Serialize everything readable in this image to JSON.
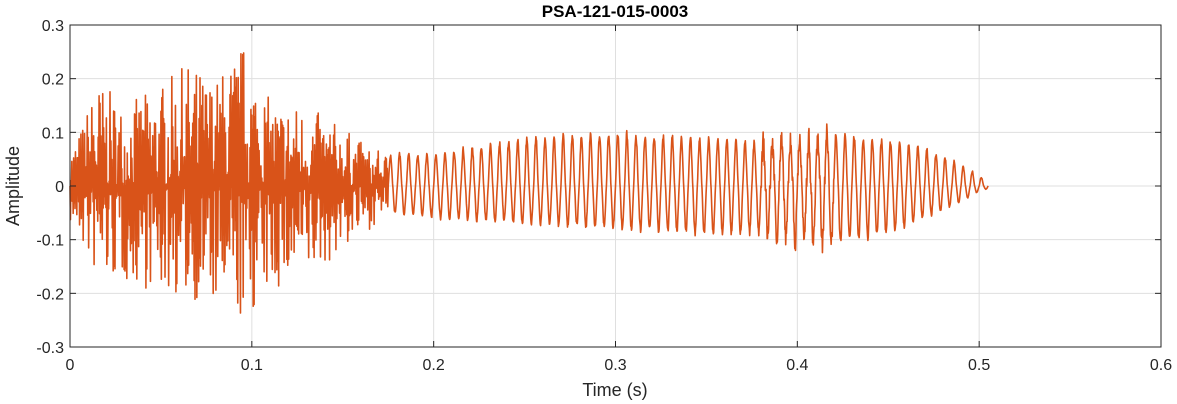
{
  "chart_data": {
    "type": "line",
    "title": "PSA-121-015-0003",
    "xlabel": "Time (s)",
    "ylabel": "Amplitude",
    "xlim": [
      0,
      0.6
    ],
    "ylim": [
      -0.3,
      0.3
    ],
    "xticks": [
      0,
      0.1,
      0.2,
      0.3,
      0.4,
      0.5,
      0.6
    ],
    "xtick_labels": [
      "0",
      "0.1",
      "0.2",
      "0.3",
      "0.4",
      "0.5",
      "0.6"
    ],
    "yticks": [
      -0.3,
      -0.2,
      -0.1,
      0,
      0.1,
      0.2,
      0.3
    ],
    "ytick_labels": [
      "-0.3",
      "-0.2",
      "-0.1",
      "0",
      "0.1",
      "0.2",
      "0.3"
    ],
    "grid": true,
    "legend": "none",
    "series_color": "#d95319",
    "envelope": {
      "t": [
        0,
        0.005,
        0.015,
        0.03,
        0.05,
        0.065,
        0.08,
        0.095,
        0.11,
        0.13,
        0.15,
        0.165,
        0.175,
        0.2,
        0.25,
        0.3,
        0.35,
        0.38,
        0.4,
        0.42,
        0.45,
        0.47,
        0.49,
        0.5,
        0.505
      ],
      "upper": [
        0.07,
        0.1,
        0.2,
        0.15,
        0.19,
        0.23,
        0.2,
        0.27,
        0.16,
        0.15,
        0.11,
        0.07,
        0.06,
        0.06,
        0.09,
        0.1,
        0.09,
        0.08,
        0.09,
        0.1,
        0.085,
        0.07,
        0.04,
        0.02,
        0.005
      ],
      "lower": [
        -0.07,
        -0.1,
        -0.18,
        -0.18,
        -0.2,
        -0.21,
        -0.23,
        -0.26,
        -0.2,
        -0.18,
        -0.12,
        -0.08,
        -0.05,
        -0.06,
        -0.07,
        -0.08,
        -0.09,
        -0.09,
        -0.11,
        -0.11,
        -0.09,
        -0.06,
        -0.03,
        -0.01,
        -0.005
      ]
    }
  }
}
